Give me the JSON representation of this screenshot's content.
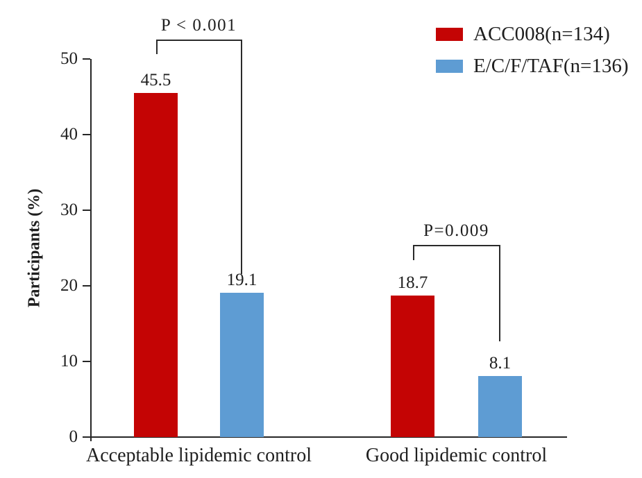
{
  "chart_data": {
    "type": "bar",
    "title": "",
    "ylabel": "Participants (%)",
    "xlabel": "",
    "ylim": [
      0,
      50
    ],
    "yticks": [
      0,
      10,
      20,
      30,
      40,
      50
    ],
    "grid": false,
    "legend_position": "top-right",
    "categories": [
      "Acceptable lipidemic control",
      "Good lipidemic control"
    ],
    "series": [
      {
        "name": "ACC008(n=134)",
        "color": "#c40404",
        "values": [
          45.5,
          18.7
        ]
      },
      {
        "name": "E/C/F/TAF(n=136)",
        "color": "#5e9cd3",
        "values": [
          19.1,
          8.1
        ]
      }
    ],
    "value_labels": [
      [
        "45.5",
        "18.7"
      ],
      [
        "19.1",
        "8.1"
      ]
    ],
    "annotations": [
      {
        "text": "P < 0.001",
        "compares": [
          "ACC008 vs E/C/F/TAF",
          "Acceptable lipidemic control"
        ]
      },
      {
        "text": "P=0.009",
        "compares": [
          "ACC008 vs E/C/F/TAF",
          "Good lipidemic control"
        ]
      }
    ],
    "axis_color": "#262626"
  }
}
